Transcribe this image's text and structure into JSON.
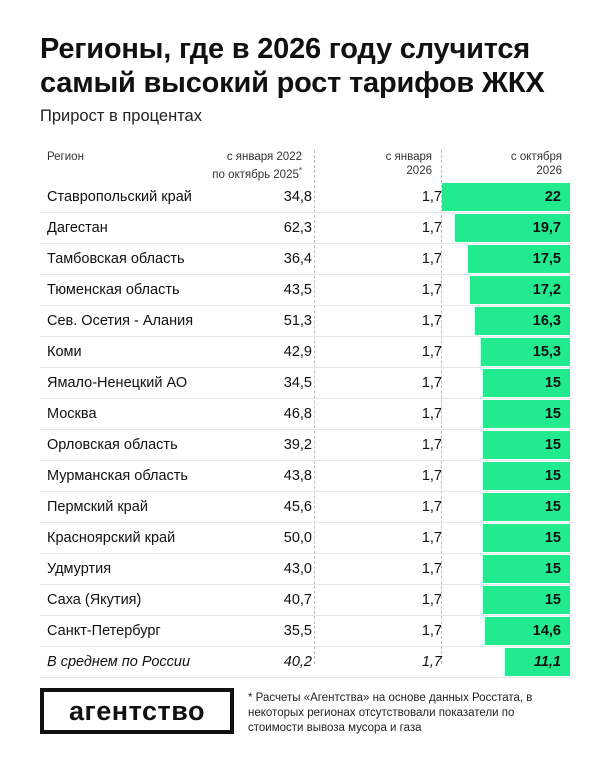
{
  "title": "Регионы, где в 2026 году случится самый высокий рост тарифов ЖКХ",
  "subtitle": "Прирост в процентах",
  "headers": {
    "region": "Регион",
    "col1_line1": "с января 2022",
    "col1_line2": "по октябрь 2025",
    "col1_mark": "*",
    "col2_line1": "с января",
    "col2_line2": "2026",
    "col3_line1": "с октября",
    "col3_line2": "2026"
  },
  "logo": "агентство",
  "footnote": "* Расчеты «Агентства» на основе данных Росстата, в некоторых регионах отсутствовали показатели по стоимости вывоза мусора и газа",
  "colors": {
    "bar": "#22ea8f",
    "text": "#111111",
    "divider": "#bdbdbd"
  },
  "chart_data": {
    "type": "table",
    "x_max": 22,
    "rows": [
      {
        "region": "Ставропольский край",
        "jan2022_oct2025": "34,8",
        "jan2026": "1,7",
        "oct2026": "22",
        "oct2026_value": 22
      },
      {
        "region": "Дагестан",
        "jan2022_oct2025": "62,3",
        "jan2026": "1,7",
        "oct2026": "19,7",
        "oct2026_value": 19.7
      },
      {
        "region": "Тамбовская область",
        "jan2022_oct2025": "36,4",
        "jan2026": "1,7",
        "oct2026": "17,5",
        "oct2026_value": 17.5
      },
      {
        "region": "Тюменская область",
        "jan2022_oct2025": "43,5",
        "jan2026": "1,7",
        "oct2026": "17,2",
        "oct2026_value": 17.2
      },
      {
        "region": "Сев. Осетия - Алания",
        "jan2022_oct2025": "51,3",
        "jan2026": "1,7",
        "oct2026": "16,3",
        "oct2026_value": 16.3
      },
      {
        "region": "Коми",
        "jan2022_oct2025": "42,9",
        "jan2026": "1,7",
        "oct2026": "15,3",
        "oct2026_value": 15.3
      },
      {
        "region": "Ямало-Ненецкий АО",
        "jan2022_oct2025": "34,5",
        "jan2026": "1,7",
        "oct2026": "15",
        "oct2026_value": 15
      },
      {
        "region": "Москва",
        "jan2022_oct2025": "46,8",
        "jan2026": "1,7",
        "oct2026": "15",
        "oct2026_value": 15
      },
      {
        "region": "Орловская область",
        "jan2022_oct2025": "39,2",
        "jan2026": "1,7",
        "oct2026": "15",
        "oct2026_value": 15
      },
      {
        "region": "Мурманская область",
        "jan2022_oct2025": "43,8",
        "jan2026": "1,7",
        "oct2026": "15",
        "oct2026_value": 15
      },
      {
        "region": "Пермский край",
        "jan2022_oct2025": "45,6",
        "jan2026": "1,7",
        "oct2026": "15",
        "oct2026_value": 15
      },
      {
        "region": "Красноярский край",
        "jan2022_oct2025": "50,0",
        "jan2026": "1,7",
        "oct2026": "15",
        "oct2026_value": 15
      },
      {
        "region": "Удмуртия",
        "jan2022_oct2025": "43,0",
        "jan2026": "1,7",
        "oct2026": "15",
        "oct2026_value": 15
      },
      {
        "region": "Саха (Якутия)",
        "jan2022_oct2025": "40,7",
        "jan2026": "1,7",
        "oct2026": "15",
        "oct2026_value": 15
      },
      {
        "region": "Санкт-Петербург",
        "jan2022_oct2025": "35,5",
        "jan2026": "1,7",
        "oct2026": "14,6",
        "oct2026_value": 14.6
      },
      {
        "region": "В среднем по России",
        "jan2022_oct2025": "40,2",
        "jan2026": "1,7",
        "oct2026": "11,1",
        "oct2026_value": 11.1,
        "average": true
      }
    ]
  }
}
